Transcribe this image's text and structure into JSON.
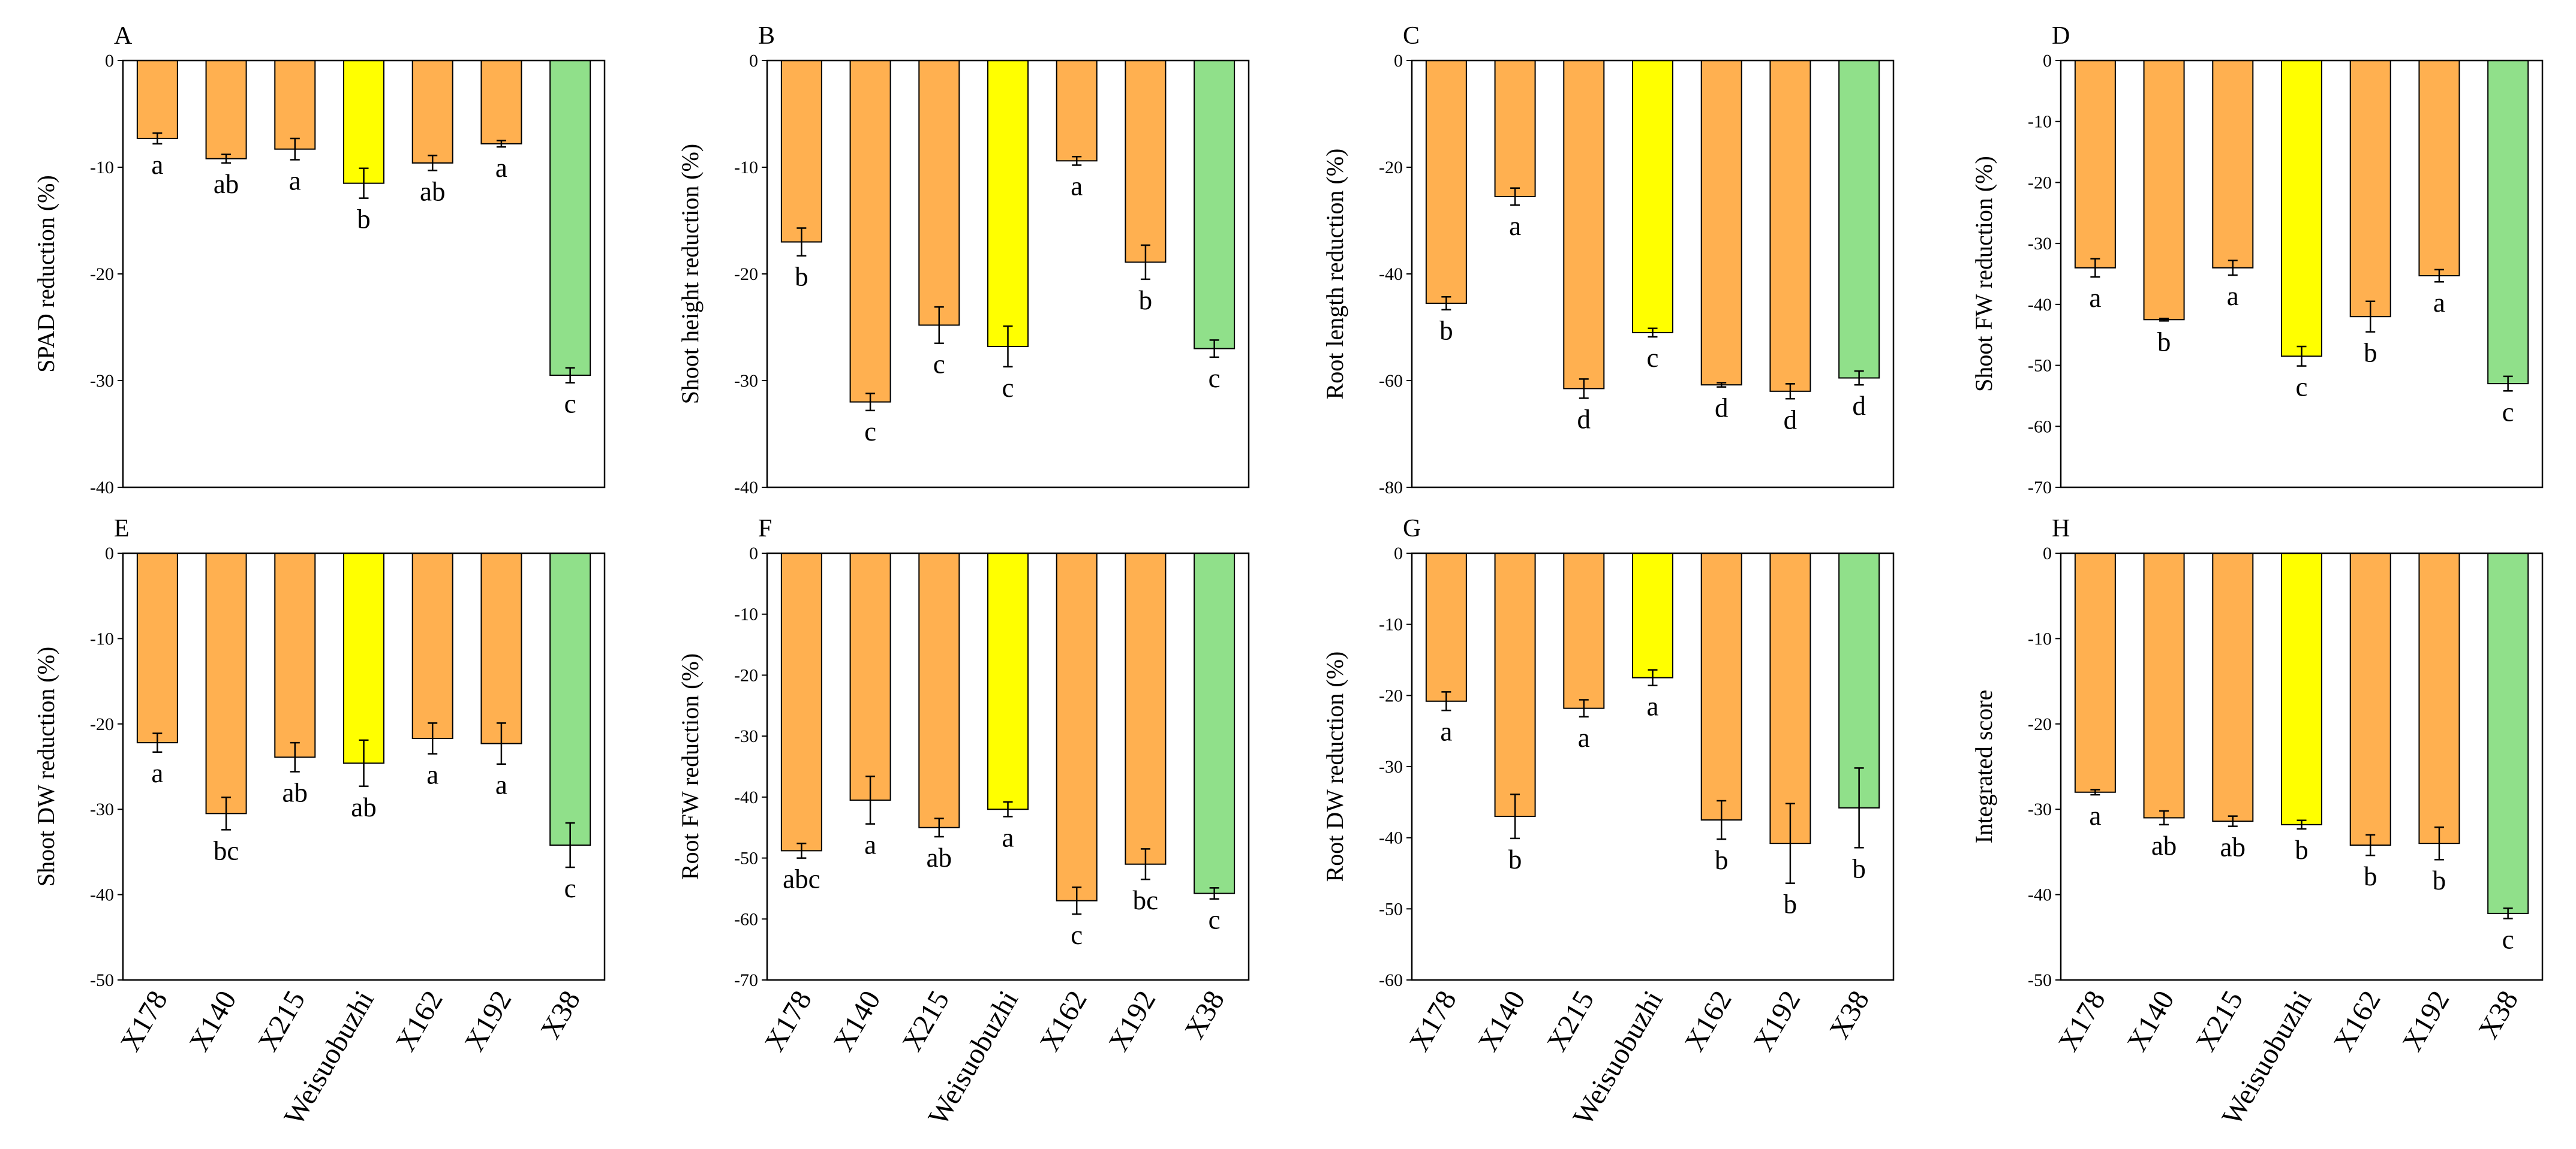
{
  "colors": {
    "orange": "#FFB050",
    "yellow": "#FFFF00",
    "green": "#90E08A",
    "stroke": "#000000"
  },
  "categories": [
    "X178",
    "X140",
    "X215",
    "Weisuobuzhi",
    "X162",
    "X192",
    "X38"
  ],
  "bar_colors": [
    "orange",
    "orange",
    "orange",
    "yellow",
    "orange",
    "orange",
    "green"
  ],
  "chart_data": [
    {
      "panel": "A",
      "type": "bar",
      "title": "",
      "xlabel": "",
      "ylabel": "SPAD reduction  (%)",
      "ylim": [
        -40,
        0
      ],
      "yticks": [
        0,
        -10,
        -20,
        -30,
        -40
      ],
      "categories": [
        "X178",
        "X140",
        "X215",
        "Weisuobuzhi",
        "X162",
        "X192",
        "X38"
      ],
      "values": [
        -7.3,
        -9.2,
        -8.3,
        -11.5,
        -9.6,
        -7.8,
        -29.5
      ],
      "errors": [
        0.5,
        0.4,
        1.0,
        1.4,
        0.7,
        0.3,
        0.7
      ],
      "letters": [
        "a",
        "ab",
        "a",
        "b",
        "ab",
        "a",
        "c"
      ]
    },
    {
      "panel": "B",
      "type": "bar",
      "title": "",
      "xlabel": "",
      "ylabel": "Shoot height  reduction  (%)",
      "ylim": [
        -40,
        0
      ],
      "yticks": [
        0,
        -10,
        -20,
        -30,
        -40
      ],
      "categories": [
        "X178",
        "X140",
        "X215",
        "Weisuobuzhi",
        "X162",
        "X192",
        "X38"
      ],
      "values": [
        -17.0,
        -32.0,
        -24.8,
        -26.8,
        -9.4,
        -18.9,
        -27.0
      ],
      "errors": [
        1.3,
        0.8,
        1.7,
        1.9,
        0.4,
        1.6,
        0.8
      ],
      "letters": [
        "b",
        "c",
        "c",
        "c",
        "a",
        "b",
        "c"
      ]
    },
    {
      "panel": "C",
      "type": "bar",
      "title": "",
      "xlabel": "",
      "ylabel": "Root length  reduction  (%)",
      "ylim": [
        -80,
        0
      ],
      "yticks": [
        0,
        -20,
        -40,
        -60,
        -80
      ],
      "categories": [
        "X178",
        "X140",
        "X215",
        "Weisuobuzhi",
        "X162",
        "X192",
        "X38"
      ],
      "values": [
        -45.5,
        -25.5,
        -61.5,
        -51.0,
        -60.8,
        -62.0,
        -59.5
      ],
      "errors": [
        1.2,
        1.6,
        1.8,
        0.8,
        0.4,
        1.4,
        1.3
      ],
      "letters": [
        "b",
        "a",
        "d",
        "c",
        "d",
        "d",
        "d"
      ]
    },
    {
      "panel": "D",
      "type": "bar",
      "title": "",
      "xlabel": "",
      "ylabel": "Shoot FW reduction  (%)",
      "ylim": [
        -70,
        0
      ],
      "yticks": [
        0,
        -10,
        -20,
        -30,
        -40,
        -50,
        -60,
        -70
      ],
      "categories": [
        "X178",
        "X140",
        "X215",
        "Weisuobuzhi",
        "X162",
        "X192",
        "X38"
      ],
      "values": [
        -34.0,
        -42.5,
        -34.0,
        -48.5,
        -42.0,
        -35.3,
        -53.0
      ],
      "errors": [
        1.5,
        0.2,
        1.2,
        1.6,
        2.5,
        1.0,
        1.2
      ],
      "letters": [
        "a",
        "b",
        "a",
        "c",
        "b",
        "a",
        "c"
      ]
    },
    {
      "panel": "E",
      "type": "bar",
      "title": "",
      "xlabel": "",
      "ylabel": "Shoot DW reduction  (%)",
      "ylim": [
        -50,
        0
      ],
      "yticks": [
        0,
        -10,
        -20,
        -30,
        -40,
        -50
      ],
      "categories": [
        "X178",
        "X140",
        "X215",
        "Weisuobuzhi",
        "X162",
        "X192",
        "X38"
      ],
      "values": [
        -22.2,
        -30.5,
        -23.9,
        -24.6,
        -21.7,
        -22.3,
        -34.2
      ],
      "errors": [
        1.1,
        1.9,
        1.7,
        2.7,
        1.8,
        2.4,
        2.6
      ],
      "letters": [
        "a",
        "bc",
        "ab",
        "ab",
        "a",
        "a",
        "c"
      ]
    },
    {
      "panel": "F",
      "type": "bar",
      "title": "",
      "xlabel": "",
      "ylabel": "Root FW reduction  (%)",
      "ylim": [
        -70,
        0
      ],
      "yticks": [
        0,
        -10,
        -20,
        -30,
        -40,
        -50,
        -60,
        -70
      ],
      "categories": [
        "X178",
        "X140",
        "X215",
        "Weisuobuzhi",
        "X162",
        "X192",
        "X38"
      ],
      "values": [
        -48.8,
        -40.5,
        -45.0,
        -42.0,
        -57.0,
        -51.0,
        -55.8
      ],
      "errors": [
        1.2,
        3.9,
        1.5,
        1.2,
        2.2,
        2.5,
        0.9
      ],
      "letters": [
        "abc",
        "a",
        "ab",
        "a",
        "c",
        "bc",
        "c"
      ]
    },
    {
      "panel": "G",
      "type": "bar",
      "title": "",
      "xlabel": "",
      "ylabel": "Root DW reduction  (%)",
      "ylim": [
        -60,
        0
      ],
      "yticks": [
        0,
        -10,
        -20,
        -30,
        -40,
        -50,
        -60
      ],
      "categories": [
        "X178",
        "X140",
        "X215",
        "Weisuobuzhi",
        "X162",
        "X192",
        "X38"
      ],
      "values": [
        -20.8,
        -37.0,
        -21.8,
        -17.5,
        -37.5,
        -40.8,
        -35.8
      ],
      "errors": [
        1.3,
        3.1,
        1.2,
        1.1,
        2.7,
        5.6,
        5.6
      ],
      "letters": [
        "a",
        "b",
        "a",
        "a",
        "b",
        "b",
        "b"
      ]
    },
    {
      "panel": "H",
      "type": "bar",
      "title": "",
      "xlabel": "",
      "ylabel": "Integrated  score",
      "ylim": [
        -50,
        0
      ],
      "yticks": [
        0,
        -10,
        -20,
        -30,
        -40,
        -50
      ],
      "categories": [
        "X178",
        "X140",
        "X215",
        "Weisuobuzhi",
        "X162",
        "X192",
        "X38"
      ],
      "values": [
        -28.0,
        -31.0,
        -31.4,
        -31.8,
        -34.2,
        -34.0,
        -42.2
      ],
      "errors": [
        0.3,
        0.8,
        0.6,
        0.5,
        1.2,
        1.9,
        0.6
      ],
      "letters": [
        "a",
        "ab",
        "ab",
        "b",
        "b",
        "b",
        "c"
      ]
    }
  ]
}
